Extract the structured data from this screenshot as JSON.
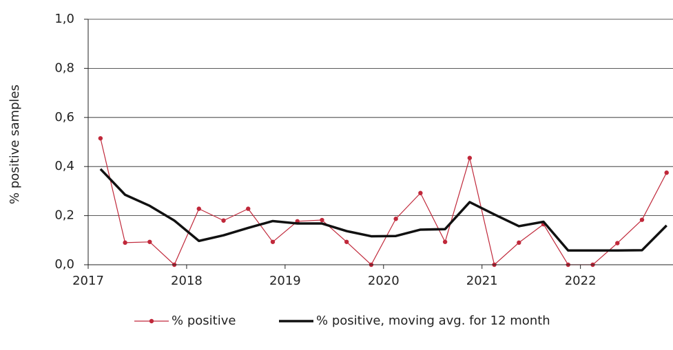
{
  "chart_data": {
    "type": "line",
    "x": [
      2017.125,
      2017.375,
      2017.625,
      2017.875,
      2018.125,
      2018.375,
      2018.625,
      2018.875,
      2019.125,
      2019.375,
      2019.625,
      2019.875,
      2020.125,
      2020.375,
      2020.625,
      2020.875,
      2021.125,
      2021.375,
      2021.625,
      2021.875,
      2022.125,
      2022.375,
      2022.625,
      2022.875
    ],
    "series": [
      {
        "name": "% positive",
        "color": "#c0283a",
        "marker": true,
        "width": 1.2,
        "values": [
          0.515,
          0.09,
          0.093,
          0,
          0.228,
          0.18,
          0.228,
          0.093,
          0.177,
          0.182,
          0.093,
          0,
          0.187,
          0.292,
          0.093,
          0.435,
          0,
          0.09,
          0.165,
          0,
          0,
          0.088,
          0.183,
          0.375
        ]
      },
      {
        "name": "% positive, moving avg. for 12 month",
        "color": "#111111",
        "marker": false,
        "width": 3.5,
        "values": [
          0.39,
          0.285,
          0.24,
          0.18,
          0.097,
          0.12,
          0.15,
          0.178,
          0.168,
          0.168,
          0.137,
          0.116,
          0.117,
          0.143,
          0.145,
          0.255,
          0.205,
          0.157,
          0.175,
          0.058,
          0.058,
          0.058,
          0.059,
          0.16
        ]
      }
    ],
    "ylabel": "% positive samples",
    "xlim": [
      2017,
      2022.94
    ],
    "xticks": [
      2017,
      2018,
      2019,
      2020,
      2021,
      2022
    ],
    "ylim": [
      0,
      1
    ],
    "yticks": [
      {
        "value": 0,
        "label": "0,0"
      },
      {
        "value": 0.2,
        "label": "0,2"
      },
      {
        "value": 0.4,
        "label": "0,4"
      },
      {
        "value": 0.6,
        "label": "0,6"
      },
      {
        "value": 0.8,
        "label": "0,8"
      },
      {
        "value": 1,
        "label": "1,0"
      }
    ],
    "grid": true,
    "legend": "bottom"
  }
}
